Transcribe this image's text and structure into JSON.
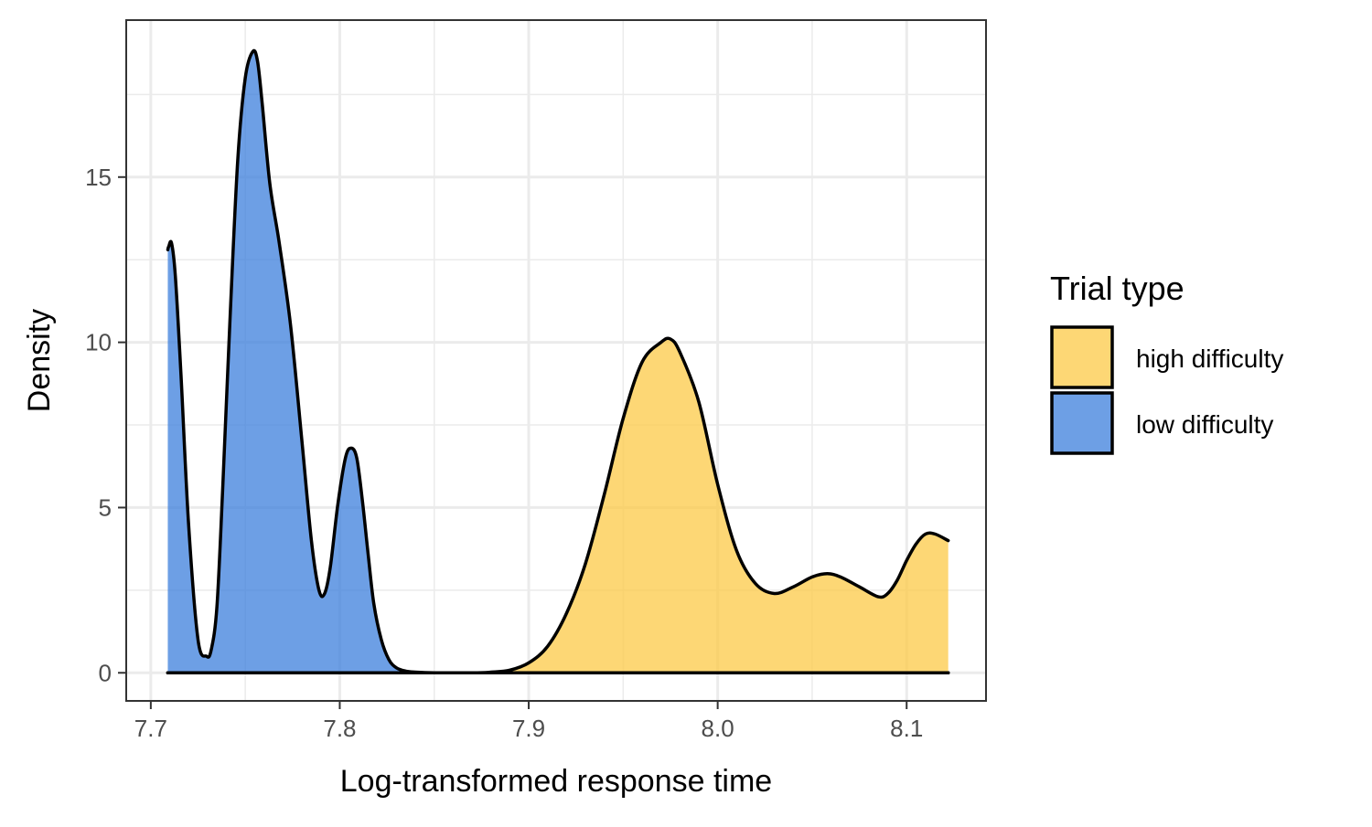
{
  "chart_data": {
    "type": "area",
    "xlabel": "Log-transformed response time",
    "ylabel": "Density",
    "xlim": [
      7.687,
      8.142
    ],
    "ylim": [
      -0.85,
      19.75
    ],
    "x_ticks": [
      7.7,
      7.8,
      7.9,
      8.0,
      8.1
    ],
    "x_tick_labels": [
      "7.7",
      "7.8",
      "7.9",
      "8.0",
      "8.1"
    ],
    "y_ticks": [
      0,
      5,
      10,
      15
    ],
    "y_tick_labels": [
      "0",
      "5",
      "10",
      "15"
    ],
    "x_minor_gridlines": [
      7.75,
      7.85,
      7.95,
      8.05
    ],
    "y_minor_gridlines": [
      2.5,
      7.5,
      12.5,
      17.5
    ],
    "grid": true,
    "legend": {
      "title": "Trial type",
      "position": "right",
      "entries": [
        {
          "label": "high difficulty",
          "color": "#FCC947"
        },
        {
          "label": "low difficulty",
          "color": "#3C7FDC"
        }
      ]
    },
    "fill_opacity": 0.75,
    "outline_color": "#000000",
    "series": [
      {
        "name": "low difficulty",
        "color": "#3C7FDC",
        "x": [
          7.709,
          7.7095,
          7.711,
          7.713,
          7.716,
          7.72,
          7.725,
          7.7295,
          7.732,
          7.735,
          7.738,
          7.742,
          7.746,
          7.75,
          7.754,
          7.7565,
          7.759,
          7.763,
          7.768,
          7.774,
          7.78,
          7.785,
          7.789,
          7.792,
          7.795,
          7.799,
          7.803,
          7.806,
          7.809,
          7.812,
          7.815,
          7.818,
          7.822,
          7.826,
          7.83,
          7.835,
          7.84,
          7.85,
          7.87,
          7.89,
          7.91,
          7.93,
          7.95,
          7.97,
          7.99,
          8.01,
          8.03,
          8.05,
          8.07,
          8.09,
          8.11,
          8.122
        ],
        "y": [
          12.8,
          12.9,
          13.0,
          12.0,
          9.0,
          4.5,
          1.0,
          0.5,
          0.7,
          2.0,
          5.5,
          10.8,
          15.5,
          18.0,
          18.8,
          18.5,
          17.2,
          14.8,
          13.0,
          10.5,
          7.0,
          4.0,
          2.5,
          2.4,
          3.2,
          5.1,
          6.5,
          6.8,
          6.5,
          5.2,
          3.6,
          2.1,
          1.0,
          0.4,
          0.15,
          0.05,
          0.02,
          0.0,
          0.0,
          0.0,
          0.0,
          0.0,
          0.0,
          0.0,
          0.0,
          0.0,
          0.0,
          0.0,
          0.0,
          0.0,
          0.0,
          0.0
        ]
      },
      {
        "name": "high difficulty",
        "color": "#FCC947",
        "x": [
          7.709,
          7.73,
          7.76,
          7.8,
          7.84,
          7.87,
          7.88,
          7.89,
          7.9,
          7.91,
          7.92,
          7.93,
          7.94,
          7.95,
          7.96,
          7.97,
          7.975,
          7.98,
          7.99,
          8.0,
          8.01,
          8.02,
          8.03,
          8.04,
          8.05,
          8.058,
          8.065,
          8.075,
          8.085,
          8.09,
          8.095,
          8.1,
          8.105,
          8.11,
          8.115,
          8.122
        ],
        "y": [
          0.0,
          0.0,
          0.0,
          0.0,
          0.0,
          0.0,
          0.02,
          0.08,
          0.3,
          0.8,
          1.8,
          3.3,
          5.4,
          7.7,
          9.4,
          10.0,
          10.1,
          9.7,
          8.2,
          5.7,
          3.7,
          2.7,
          2.4,
          2.6,
          2.9,
          3.0,
          2.9,
          2.6,
          2.3,
          2.4,
          2.8,
          3.4,
          3.9,
          4.2,
          4.2,
          4.0
        ]
      }
    ]
  }
}
